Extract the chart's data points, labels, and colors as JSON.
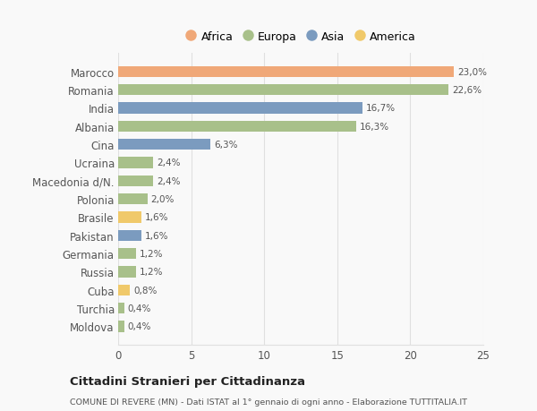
{
  "categories": [
    "Moldova",
    "Turchia",
    "Cuba",
    "Russia",
    "Germania",
    "Pakistan",
    "Brasile",
    "Polonia",
    "Macedonia d/N.",
    "Ucraina",
    "Cina",
    "Albania",
    "India",
    "Romania",
    "Marocco"
  ],
  "values": [
    0.4,
    0.4,
    0.8,
    1.2,
    1.2,
    1.6,
    1.6,
    2.0,
    2.4,
    2.4,
    6.3,
    16.3,
    16.7,
    22.6,
    23.0
  ],
  "labels": [
    "0,4%",
    "0,4%",
    "0,8%",
    "1,2%",
    "1,2%",
    "1,6%",
    "1,6%",
    "2,0%",
    "2,4%",
    "2,4%",
    "6,3%",
    "16,3%",
    "16,7%",
    "22,6%",
    "23,0%"
  ],
  "colors": [
    "#a8c08a",
    "#a8c08a",
    "#f0c96a",
    "#a8c08a",
    "#a8c08a",
    "#7b9bbf",
    "#f0c96a",
    "#a8c08a",
    "#a8c08a",
    "#a8c08a",
    "#7b9bbf",
    "#a8c08a",
    "#7b9bbf",
    "#a8c08a",
    "#f0a878"
  ],
  "legend_order": [
    "Africa",
    "Europa",
    "Asia",
    "America"
  ],
  "legend_colors": {
    "Africa": "#f0a878",
    "Europa": "#a8c08a",
    "Asia": "#7b9bbf",
    "America": "#f0c96a"
  },
  "title": "Cittadini Stranieri per Cittadinanza",
  "subtitle": "COMUNE DI REVERE (MN) - Dati ISTAT al 1° gennaio di ogni anno - Elaborazione TUTTITALIA.IT",
  "xlim": [
    0,
    25
  ],
  "xticks": [
    0,
    5,
    10,
    15,
    20,
    25
  ],
  "background_color": "#f9f9f9",
  "grid_color": "#e0e0e0",
  "bar_height": 0.6
}
